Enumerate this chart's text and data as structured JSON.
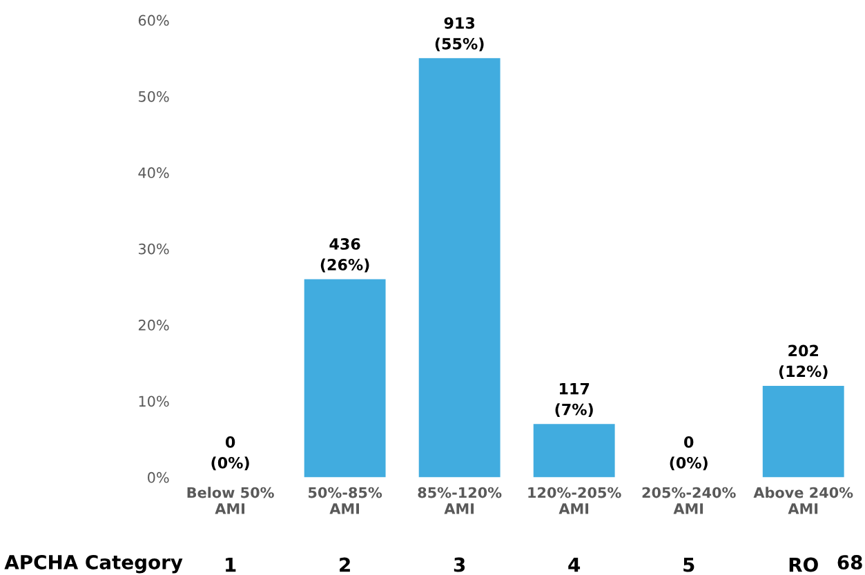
{
  "chart_data": {
    "type": "bar",
    "categories": [
      "Below 50%\nAMI",
      "50%-85%\nAMI",
      "85%-120%\nAMI",
      "120%-205%\nAMI",
      "205%-240%\nAMI",
      "Above 240%\nAMI"
    ],
    "values": [
      0,
      26,
      55,
      7,
      0,
      12
    ],
    "value_labels": [
      "0\n(0%)",
      "436\n(26%)",
      "913\n(55%)",
      "117\n(7%)",
      "0\n(0%)",
      "202\n(12%)"
    ],
    "color": "#41acdf",
    "ylim": [
      0,
      60
    ],
    "yticks": [
      {
        "value": 0,
        "label": "0%"
      },
      {
        "value": 10,
        "label": "10%"
      },
      {
        "value": 20,
        "label": "20%"
      },
      {
        "value": 30,
        "label": "30%"
      },
      {
        "value": 40,
        "label": "40%"
      },
      {
        "value": 50,
        "label": "50%"
      },
      {
        "value": 60,
        "label": "60%"
      }
    ],
    "grid": false,
    "annotations": [
      "APCHA Category",
      "1",
      "2",
      "3",
      "4",
      "5",
      "RO",
      "68"
    ]
  }
}
